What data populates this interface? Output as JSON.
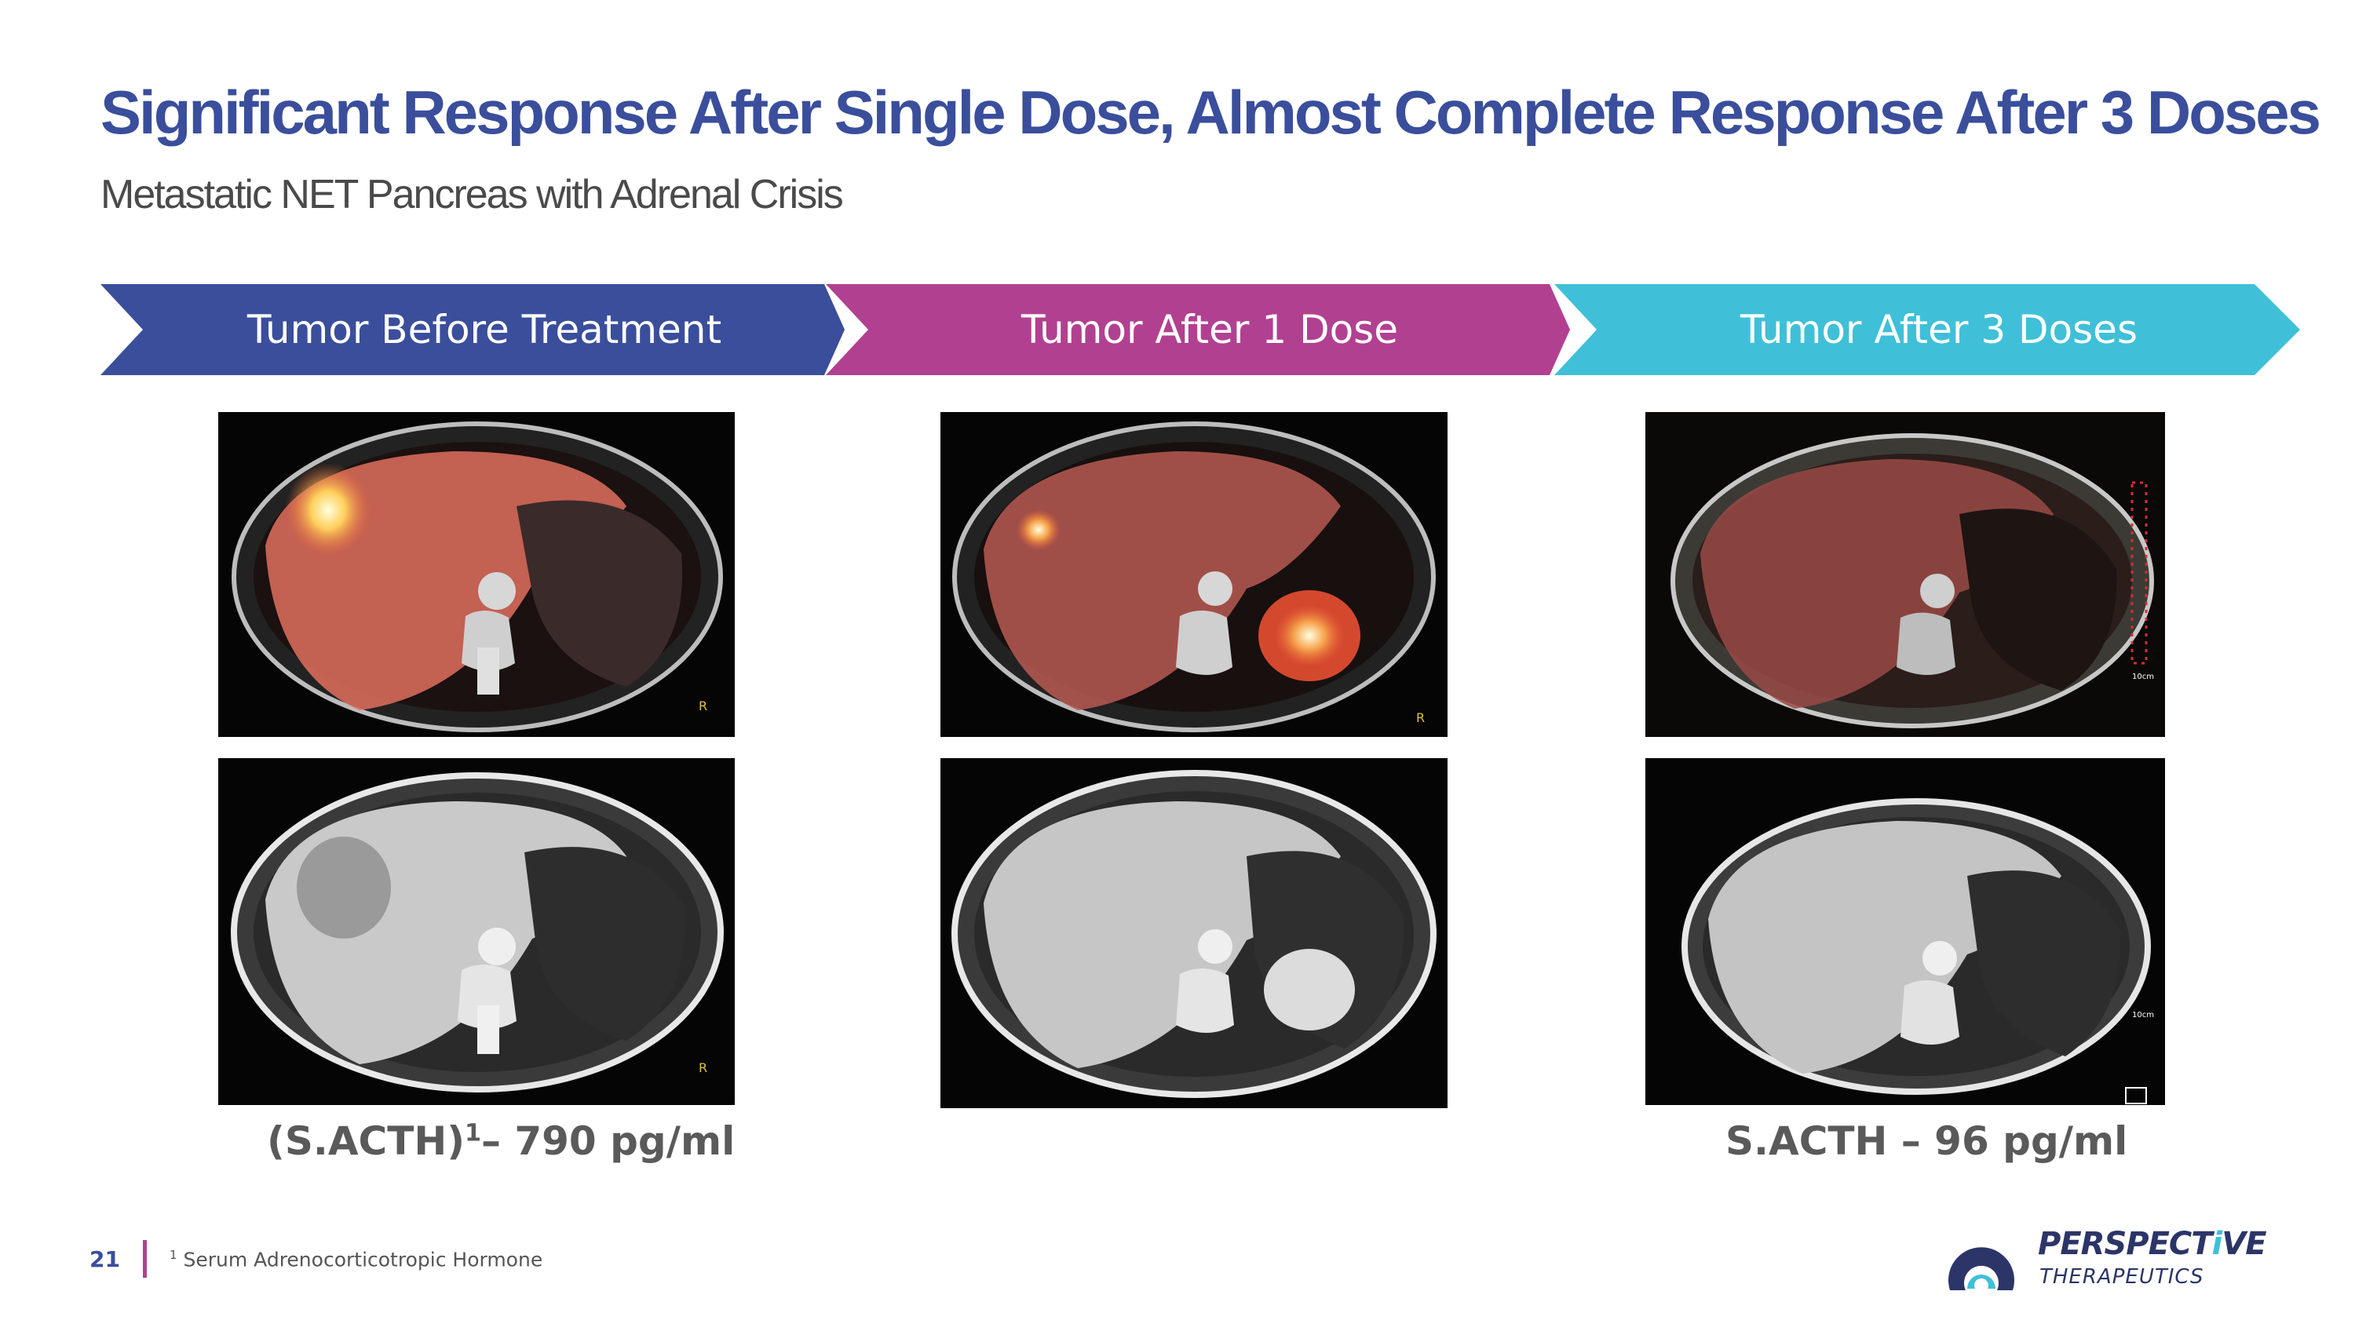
{
  "slide": {
    "title": "Significant Response After Single Dose, Almost Complete Response After 3 Doses",
    "subtitle": "Metastatic NET Pancreas with Adrenal Crisis"
  },
  "stages": [
    {
      "label": "Tumor Before Treatment",
      "color": "#3a4e9c"
    },
    {
      "label": "Tumor After 1 Dose",
      "color": "#b24091"
    },
    {
      "label": "Tumor After 3 Doses",
      "color": "#3fc0d8"
    }
  ],
  "scans": {
    "before_pet": {
      "marker": "R"
    },
    "before_ct": {
      "marker": "R"
    },
    "after1_pet": {
      "marker": "R"
    },
    "after3_pet": {
      "marker": "10cm"
    },
    "after3_ct": {
      "marker": "10cm"
    }
  },
  "lab_values": {
    "before_prefix": "(S.ACTH)",
    "before_sup": "1",
    "before_suffix": "– 790 pg/ml",
    "after3": "S.ACTH – 96 pg/ml"
  },
  "footer": {
    "page_number": "21",
    "footnote_marker": "1",
    "footnote_text": " Serum Adrenocorticotropic Hormone"
  },
  "logo": {
    "name_prefix": "PERSPECT",
    "name_accent": "i",
    "name_suffix": "VE",
    "subtitle": "THERAPEUTICS",
    "accent_color": "#3fc0d8"
  }
}
